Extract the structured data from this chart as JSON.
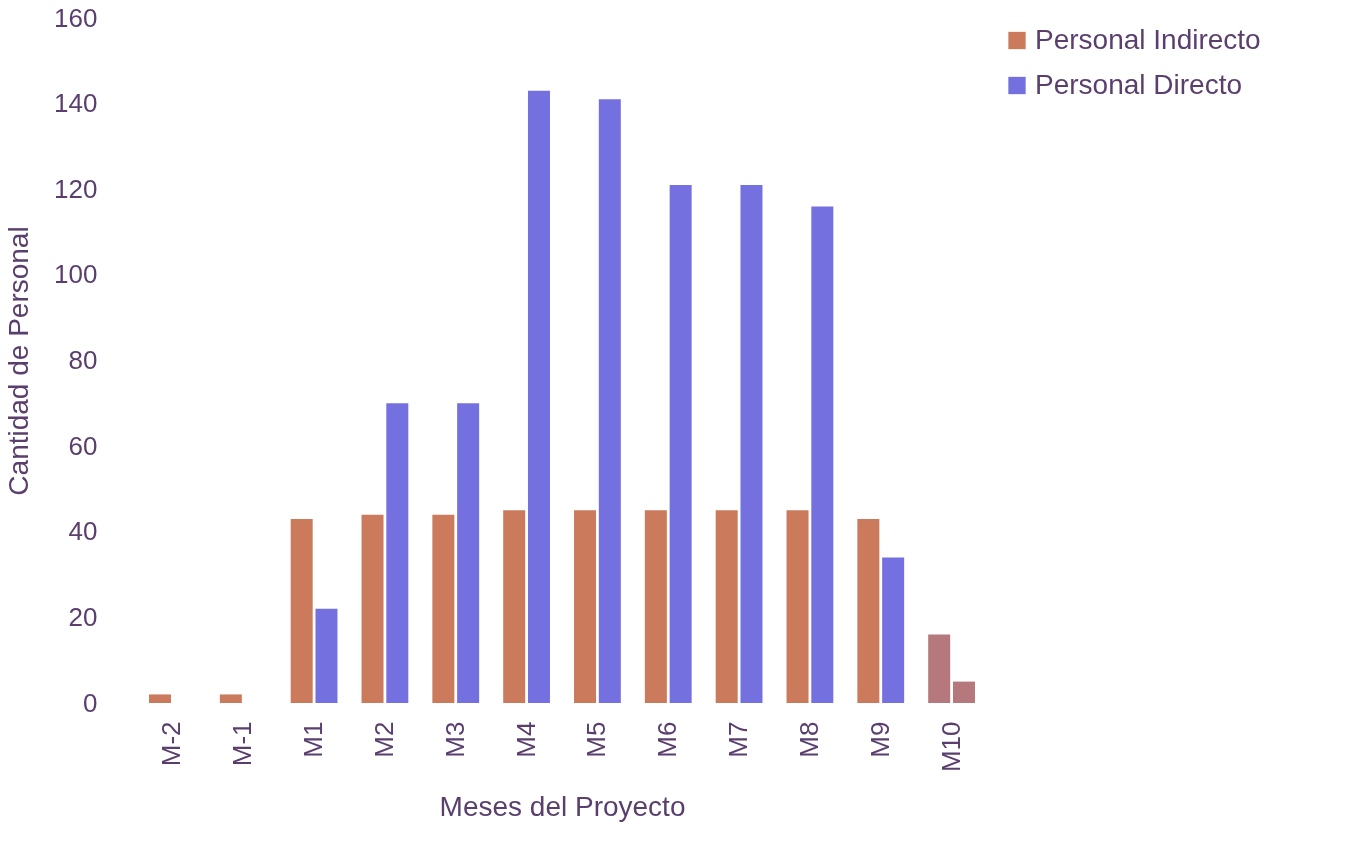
{
  "chart_data": {
    "type": "bar",
    "xlabel": "Meses del Proyecto",
    "ylabel": "Cantidad de Personal",
    "categories": [
      "M-2",
      "M-1",
      "M1",
      "M2",
      "M3",
      "M4",
      "M5",
      "M6",
      "M7",
      "M8",
      "M9",
      "M10"
    ],
    "series": [
      {
        "name": "Personal Indirecto",
        "color": "#cc7a5c",
        "colors": [
          "#cc7a5c",
          "#cc7a5c",
          "#cc7a5c",
          "#cc7a5c",
          "#cc7a5c",
          "#cc7a5c",
          "#cc7a5c",
          "#cc7a5c",
          "#cc7a5c",
          "#cc7a5c",
          "#cc7a5c",
          "#b5787c"
        ],
        "values": [
          2,
          2,
          43,
          44,
          44,
          45,
          45,
          45,
          45,
          45,
          43,
          16
        ]
      },
      {
        "name": "Personal Directo",
        "color": "#7470e0",
        "colors": [
          "#7470e0",
          "#7470e0",
          "#7470e0",
          "#7470e0",
          "#7470e0",
          "#7470e0",
          "#7470e0",
          "#7470e0",
          "#7470e0",
          "#7470e0",
          "#7470e0",
          "#b5787c"
        ],
        "values": [
          null,
          null,
          22,
          70,
          70,
          143,
          141,
          121,
          121,
          116,
          34,
          5
        ]
      }
    ],
    "ylim": [
      0,
      160
    ],
    "yticks": [
      0,
      20,
      40,
      60,
      80,
      100,
      120,
      140,
      160
    ],
    "grid": false,
    "legend": "right"
  }
}
